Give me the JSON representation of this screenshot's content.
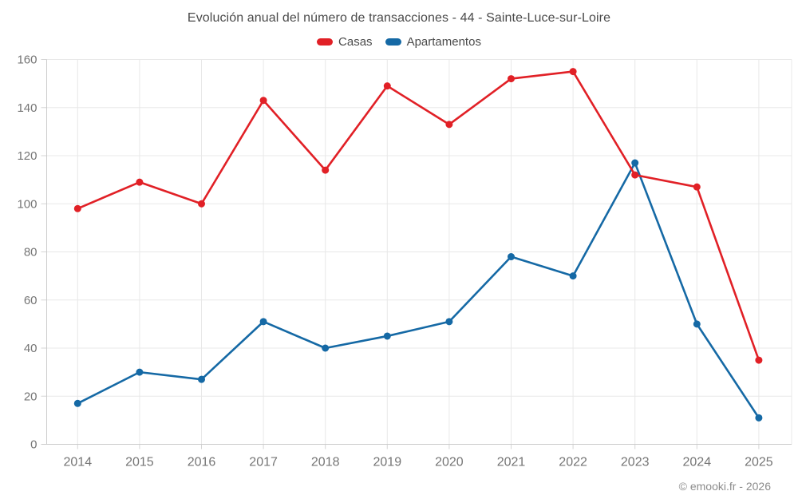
{
  "chart_data": {
    "type": "line",
    "title": "Evolución anual del número de transacciones - 44 - Sainte-Luce-sur-Loire",
    "categories": [
      "2014",
      "2015",
      "2016",
      "2017",
      "2018",
      "2019",
      "2020",
      "2021",
      "2022",
      "2023",
      "2024",
      "2025"
    ],
    "series": [
      {
        "name": "Casas",
        "color": "#e12026",
        "values": [
          98,
          109,
          100,
          143,
          114,
          149,
          133,
          152,
          155,
          112,
          107,
          35
        ]
      },
      {
        "name": "Apartamentos",
        "color": "#1569a5",
        "values": [
          17,
          30,
          27,
          51,
          40,
          45,
          51,
          78,
          70,
          117,
          50,
          11
        ]
      }
    ],
    "xlabel": "",
    "ylabel": "",
    "ylim": [
      0,
      160
    ],
    "ytick_step": 20,
    "grid": true,
    "legend_position": "top",
    "grid_color": "#e8e8e8",
    "axis_color": "#cccccc",
    "tick_label_color": "#757575"
  },
  "footer": {
    "copyright": "© emooki.fr - 2026"
  }
}
